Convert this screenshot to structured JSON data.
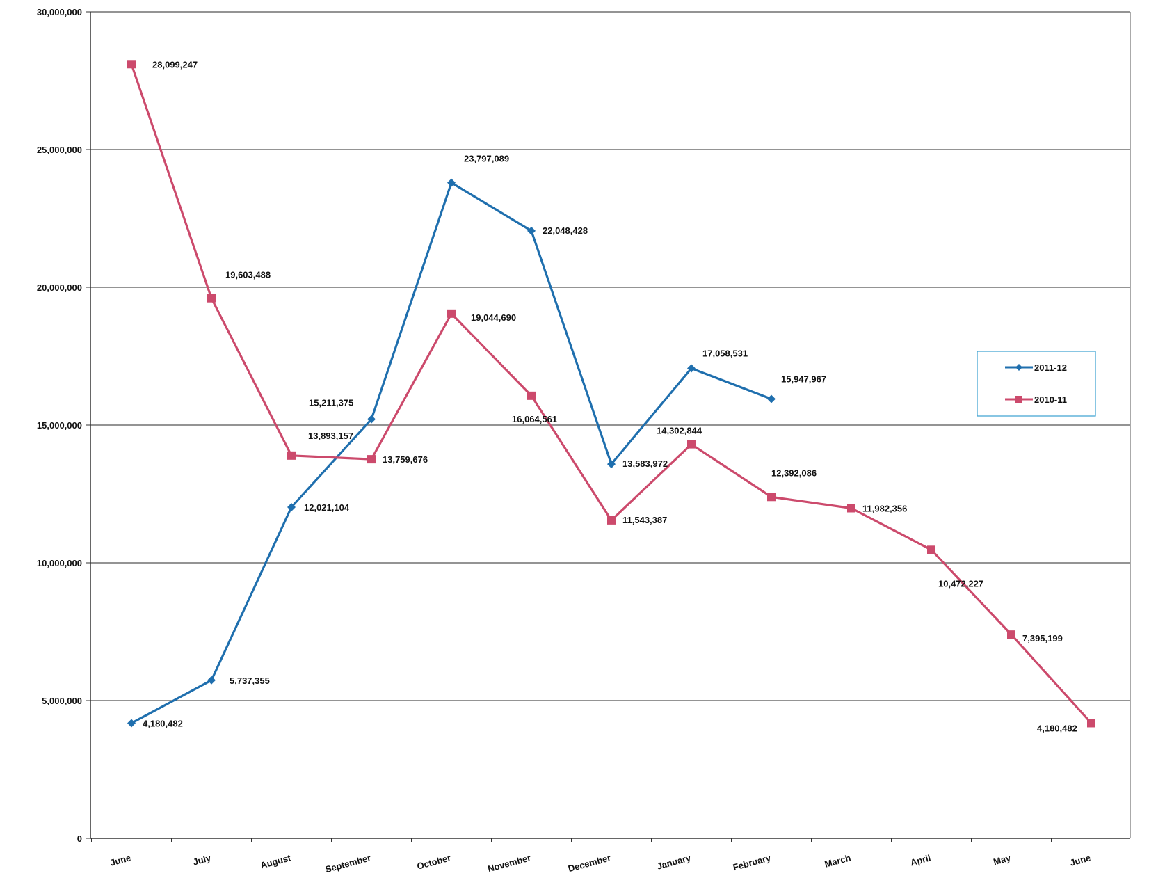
{
  "chart_data": {
    "type": "line",
    "title": "",
    "xlabel": "",
    "ylabel": "",
    "categories": [
      "June",
      "July",
      "August",
      "September",
      "October",
      "November",
      "December",
      "January",
      "February",
      "March",
      "April",
      "May",
      "June"
    ],
    "ylim": [
      0,
      30000000
    ],
    "yticks": [
      0,
      5000000,
      10000000,
      15000000,
      20000000,
      25000000,
      30000000
    ],
    "ytick_labels": [
      "0",
      "5,000,000",
      "10,000,000",
      "15,000,000",
      "20,000,000",
      "25,000,000",
      "30,000,000"
    ],
    "grid": true,
    "legend_position": "right",
    "series": [
      {
        "name": "2011-12",
        "color": "#1f6fae",
        "marker": "diamond",
        "values": [
          4180482,
          5737355,
          12021104,
          15211375,
          23797089,
          22048428,
          13583972,
          17058531,
          15947967,
          null,
          null,
          null,
          null
        ],
        "labels": [
          "4,180,482",
          "5,737,355",
          "12,021,104",
          "15,211,375",
          "23,797,089",
          "22,048,428",
          "13,583,972",
          "17,058,531",
          "15,947,967",
          null,
          null,
          null,
          null
        ]
      },
      {
        "name": "2010-11",
        "color": "#cc4a6c",
        "marker": "square",
        "values": [
          28099247,
          19603488,
          13893157,
          13759676,
          19044690,
          16064561,
          11543387,
          14302844,
          12392086,
          11982356,
          10472227,
          7395199,
          4180482
        ],
        "labels": [
          "28,099,247",
          "19,603,488",
          "13,893,157",
          "13,759,676",
          "19,044,690",
          "16,064,561",
          "11,543,387",
          "14,302,844",
          "12,392,086",
          "11,982,356",
          "10,472,227",
          "7,395,199",
          "4,180,482"
        ]
      }
    ]
  }
}
